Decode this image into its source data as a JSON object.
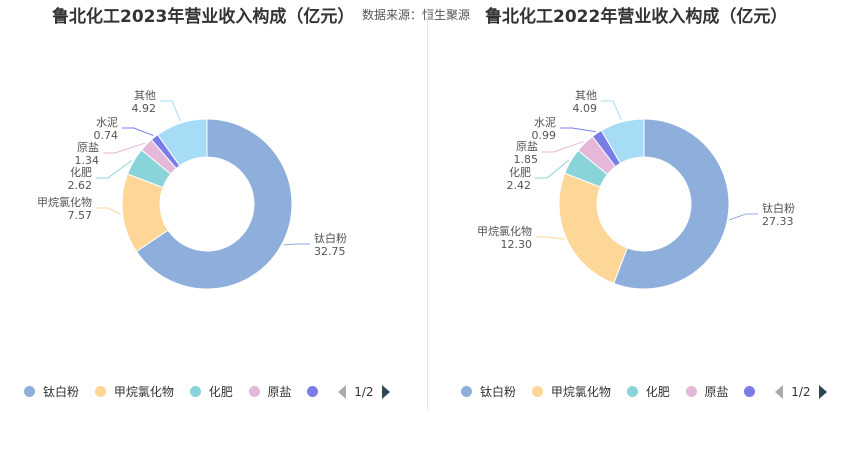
{
  "source_text": "数据来源：恒生聚源",
  "chart_data": [
    {
      "type": "pie",
      "title": "鲁北化工2023年营业收入构成（亿元）",
      "categories": [
        "钛白粉",
        "甲烷氯化物",
        "化肥",
        "原盐",
        "水泥",
        "其他"
      ],
      "values": [
        32.75,
        7.57,
        2.62,
        1.34,
        0.74,
        4.92
      ],
      "value_labels": [
        "32.75",
        "7.57",
        "2.62",
        "1.34",
        "0.74",
        "4.92"
      ],
      "colors": [
        "#8eaedb",
        "#fdd698",
        "#89d4d9",
        "#e5b8da",
        "#7a7de8",
        "#a7dcf6"
      ],
      "legend_placement": "bottom",
      "legend_visible": [
        "钛白粉",
        "甲烷氯化物",
        "化肥",
        "原盐"
      ],
      "legend_page": "1/2"
    },
    {
      "type": "pie",
      "title": "鲁北化工2022年营业收入构成（亿元）",
      "categories": [
        "钛白粉",
        "甲烷氯化物",
        "化肥",
        "原盐",
        "水泥",
        "其他"
      ],
      "values": [
        27.33,
        12.3,
        2.42,
        1.85,
        0.99,
        4.09
      ],
      "value_labels": [
        "27.33",
        "12.30",
        "2.42",
        "1.85",
        "0.99",
        "4.09"
      ],
      "colors": [
        "#8eaedb",
        "#fdd698",
        "#89d4d9",
        "#e5b8da",
        "#7a7de8",
        "#a7dcf6"
      ],
      "legend_placement": "bottom",
      "legend_visible": [
        "钛白粉",
        "甲烷氯化物",
        "化肥",
        "原盐"
      ],
      "legend_page": "1/2"
    }
  ]
}
